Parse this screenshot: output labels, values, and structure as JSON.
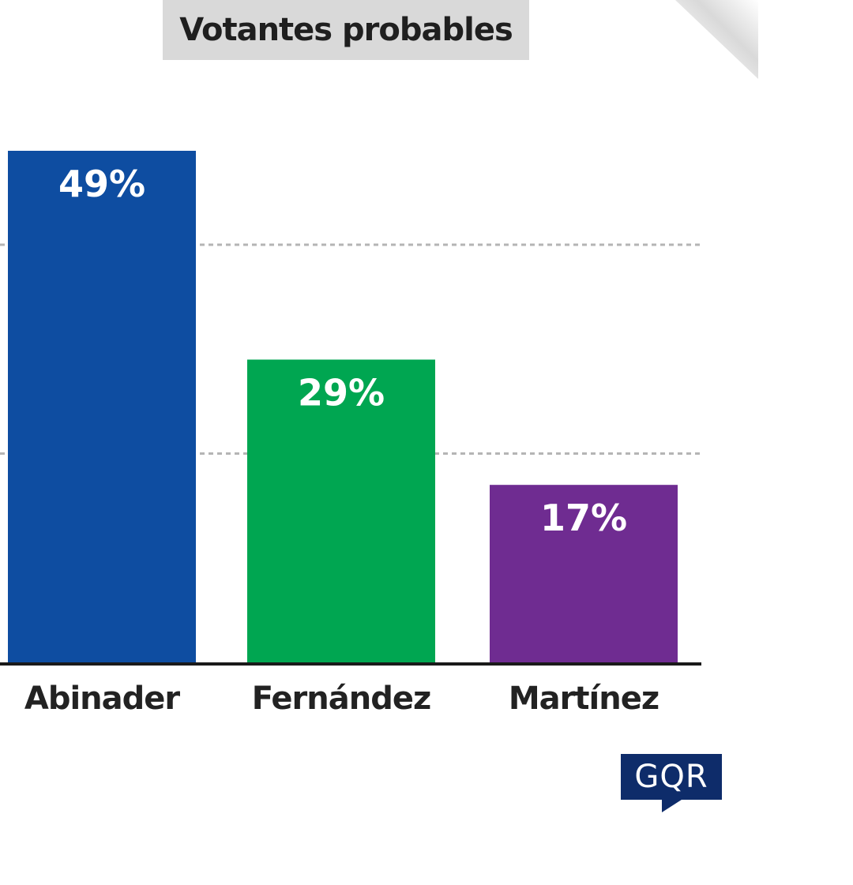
{
  "title": "Votantes probables",
  "logo_text": "GQR",
  "chart_data": {
    "type": "bar",
    "title": "Votantes probables",
    "categories": [
      "Abinader",
      "Fernández",
      "Martínez"
    ],
    "values": [
      49,
      29,
      17
    ],
    "value_labels": [
      "49%",
      "29%",
      "17%"
    ],
    "colors": [
      "#0e4da1",
      "#00a651",
      "#6f2c91"
    ],
    "xlabel": "",
    "ylabel": "",
    "ylim": [
      0,
      49
    ],
    "gridlines": [
      40,
      20
    ],
    "grid": true,
    "legend": "none"
  }
}
